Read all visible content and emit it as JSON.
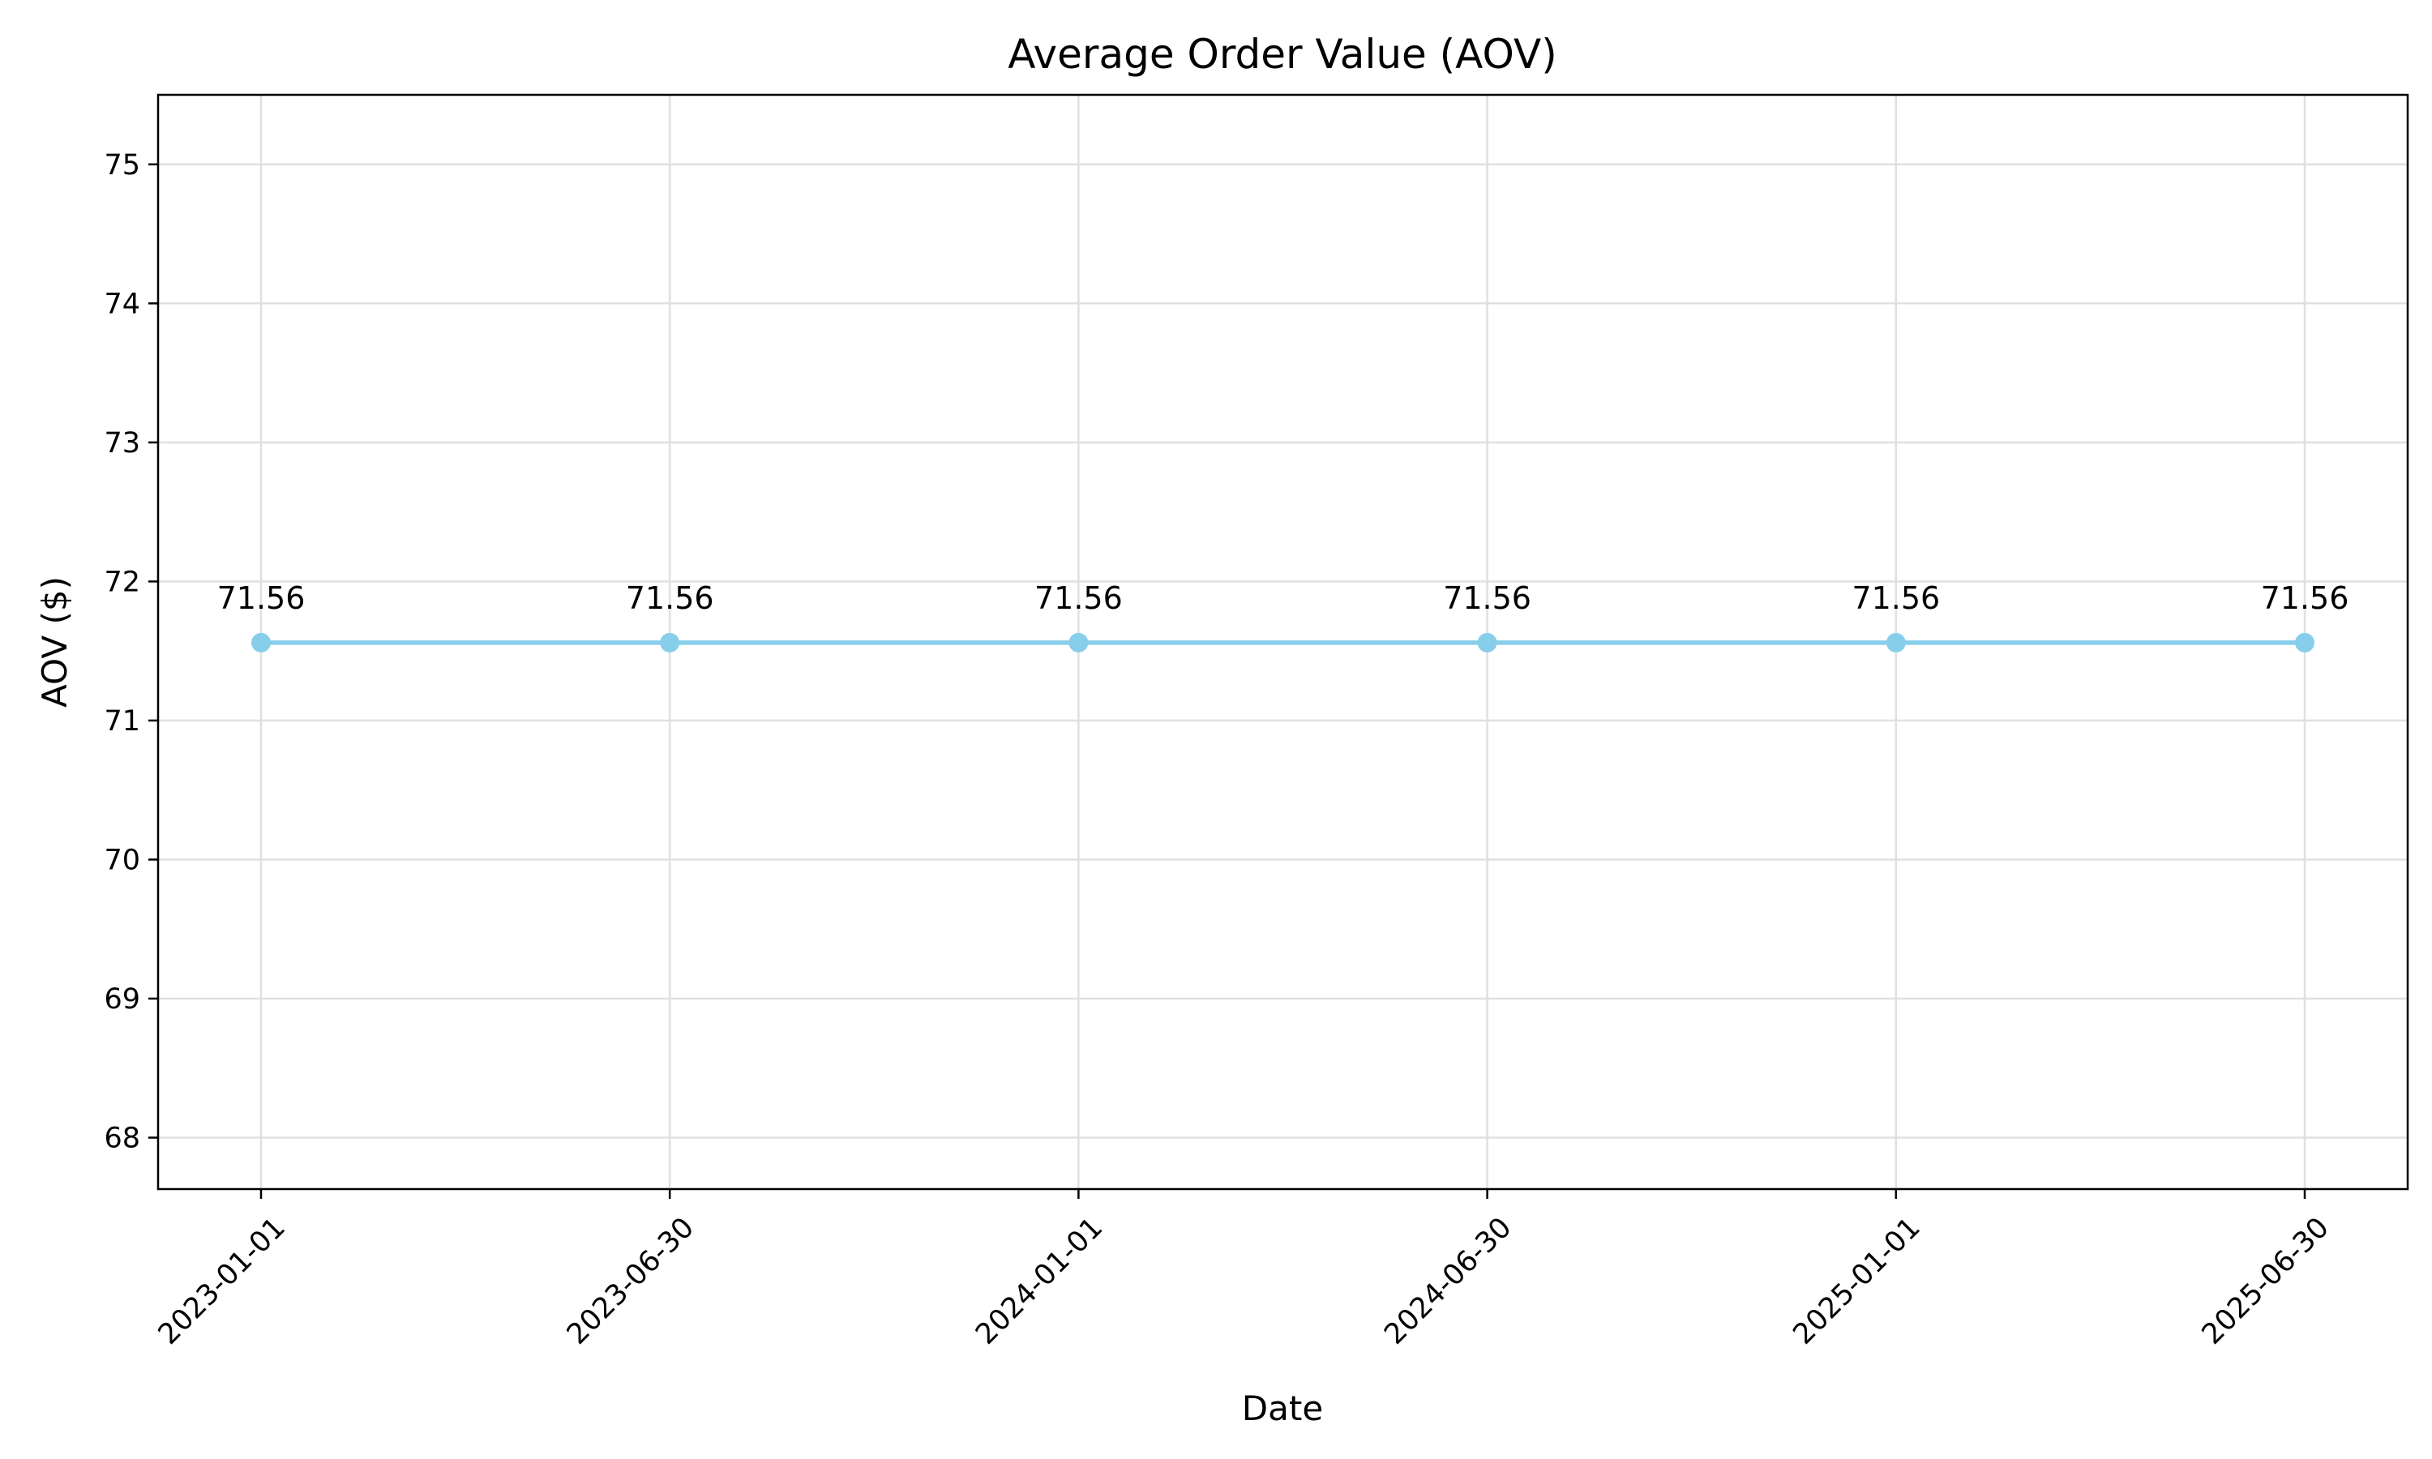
{
  "chart_data": {
    "type": "line",
    "title": "Average Order Value (AOV)",
    "xlabel": "Date",
    "ylabel": "AOV ($)",
    "x": [
      "2023-01-01",
      "2023-06-30",
      "2024-01-01",
      "2024-06-30",
      "2025-01-01",
      "2025-06-30"
    ],
    "series": [
      {
        "values": [
          71.56,
          71.56,
          71.56,
          71.56,
          71.56,
          71.56
        ],
        "data_labels": [
          "71.56",
          "71.56",
          "71.56",
          "71.56",
          "71.56",
          "71.56"
        ],
        "color": "#87ceeb",
        "marker": "circle"
      }
    ],
    "y_ticks": [
      68,
      69,
      70,
      71,
      72,
      73,
      74,
      75
    ],
    "ylim": [
      67.63,
      75.5
    ],
    "x_tick_rotation_deg": 45,
    "grid": true,
    "legend": "none"
  }
}
